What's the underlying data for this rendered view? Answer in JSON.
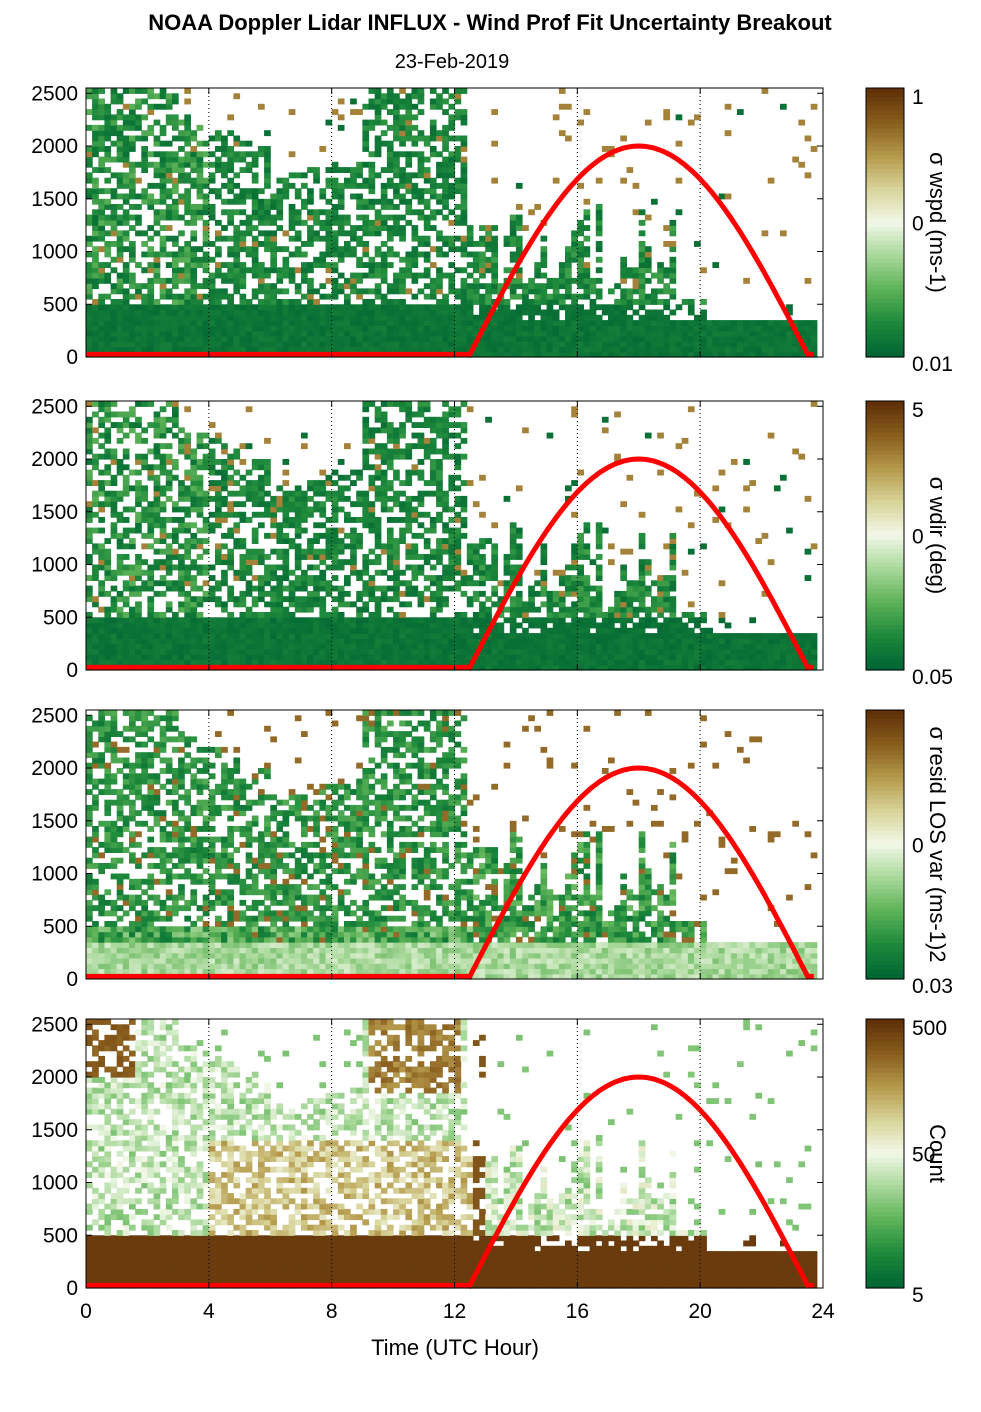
{
  "title": "NOAA Doppler Lidar INFLUX - Wind Prof Fit Uncertainty Breakout",
  "subtitle": "23-Feb-2019",
  "colors": {
    "sun_curve": "#ff0000",
    "missing": "#ffffff",
    "colormap": [
      "#006633",
      "#1f8a3c",
      "#5fb358",
      "#a8d89a",
      "#f2f8e8",
      "#d8d49a",
      "#b59a4c",
      "#8a5e1e",
      "#603008"
    ]
  },
  "chart_data": [
    {
      "type": "heatmap",
      "panel": "wspd",
      "xlabel": "",
      "ylabel": "",
      "xlim": [
        0,
        24
      ],
      "ylim": [
        0,
        2550
      ],
      "xticks": [
        "0",
        "4",
        "8",
        "12",
        "16",
        "20",
        "24"
      ],
      "yticks": [
        "0",
        "500",
        "1000",
        "1500",
        "2000",
        "2500"
      ],
      "colorbar": {
        "label": "σ wspd (ms-1)",
        "ticks": [
          "1",
          "0",
          "0.01"
        ],
        "log": true
      },
      "fill_fraction": {
        "boundary_layer_m": 550,
        "upper_fill_before_12h": 0.65
      },
      "grid": "dotted vertical at every 4 h",
      "sun_elevation_curve": {
        "rise_h": 12.5,
        "peak_h": 18.0,
        "set_h": 23.5,
        "peak_m": 2000,
        "baseline_m": 25
      }
    },
    {
      "type": "heatmap",
      "panel": "wdir",
      "xlabel": "",
      "ylabel": "",
      "xlim": [
        0,
        24
      ],
      "ylim": [
        0,
        2550
      ],
      "xticks": [
        "0",
        "4",
        "8",
        "12",
        "16",
        "20",
        "24"
      ],
      "yticks": [
        "0",
        "500",
        "1000",
        "1500",
        "2000",
        "2500"
      ],
      "colorbar": {
        "label": "σ wdir (deg)",
        "ticks": [
          "5",
          "0",
          "0.05"
        ],
        "log": true
      },
      "grid": "dotted vertical at every 4 h",
      "sun_elevation_curve": {
        "rise_h": 12.5,
        "peak_h": 18.0,
        "set_h": 23.5,
        "peak_m": 2000,
        "baseline_m": 25
      }
    },
    {
      "type": "heatmap",
      "panel": "resid",
      "xlabel": "",
      "ylabel": "",
      "xlim": [
        0,
        24
      ],
      "ylim": [
        0,
        2550
      ],
      "xticks": [
        "0",
        "4",
        "8",
        "12",
        "16",
        "20",
        "24"
      ],
      "yticks": [
        "0",
        "500",
        "1000",
        "1500",
        "2000",
        "2500"
      ],
      "colorbar": {
        "label": "σ resid LOS var (ms-1)2",
        "ticks": [
          "",
          "0",
          "0.03"
        ],
        "log": true
      },
      "grid": "dotted vertical at every 4 h",
      "sun_elevation_curve": {
        "rise_h": 12.5,
        "peak_h": 18.0,
        "set_h": 23.5,
        "peak_m": 2000,
        "baseline_m": 25
      }
    },
    {
      "type": "heatmap",
      "panel": "count",
      "xlabel": "Time (UTC Hour)",
      "ylabel": "",
      "xlim": [
        0,
        24
      ],
      "ylim": [
        0,
        2550
      ],
      "xticks": [
        "0",
        "4",
        "8",
        "12",
        "16",
        "20",
        "24"
      ],
      "yticks": [
        "0",
        "500",
        "1000",
        "1500",
        "2000",
        "2500"
      ],
      "colorbar": {
        "label": "Count",
        "ticks": [
          "500",
          "50",
          "5"
        ],
        "log": true
      },
      "grid": "dotted vertical at every 4 h",
      "sun_elevation_curve": {
        "rise_h": 12.5,
        "peak_h": 18.0,
        "set_h": 23.5,
        "peak_m": 2000,
        "baseline_m": 25
      }
    }
  ]
}
